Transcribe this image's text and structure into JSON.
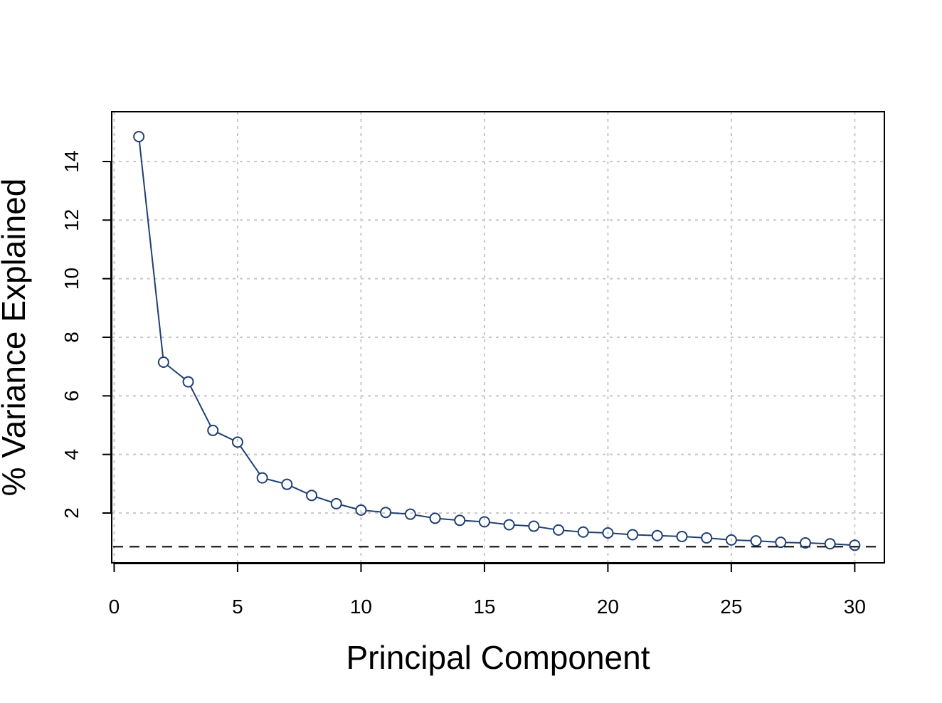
{
  "chart_data": {
    "type": "line",
    "title": "",
    "xlabel": "Principal Component",
    "ylabel": "% Variance Explained",
    "xlim": [
      -0.1,
      31.2
    ],
    "ylim": [
      0.3,
      15.7
    ],
    "xticks": [
      0,
      5,
      10,
      15,
      20,
      25,
      30
    ],
    "yticks": [
      2,
      4,
      6,
      8,
      10,
      12,
      14
    ],
    "grid": true,
    "reference_line": {
      "y": 0.85,
      "style": "dashed"
    },
    "series": [
      {
        "x": [
          1,
          2,
          3,
          4,
          5,
          6,
          7,
          8,
          9,
          10,
          11,
          12,
          13,
          14,
          15,
          16,
          17,
          18,
          19,
          20,
          21,
          22,
          23,
          24,
          25,
          26,
          27,
          28,
          29,
          30
        ],
        "values": [
          14.85,
          7.15,
          6.48,
          4.82,
          4.42,
          3.2,
          2.98,
          2.6,
          2.32,
          2.1,
          2.02,
          1.96,
          1.82,
          1.75,
          1.7,
          1.6,
          1.55,
          1.42,
          1.35,
          1.32,
          1.26,
          1.23,
          1.2,
          1.15,
          1.08,
          1.05,
          1.0,
          0.98,
          0.95,
          0.9
        ],
        "color": "#1f3f73",
        "marker": "open-circle"
      }
    ]
  }
}
